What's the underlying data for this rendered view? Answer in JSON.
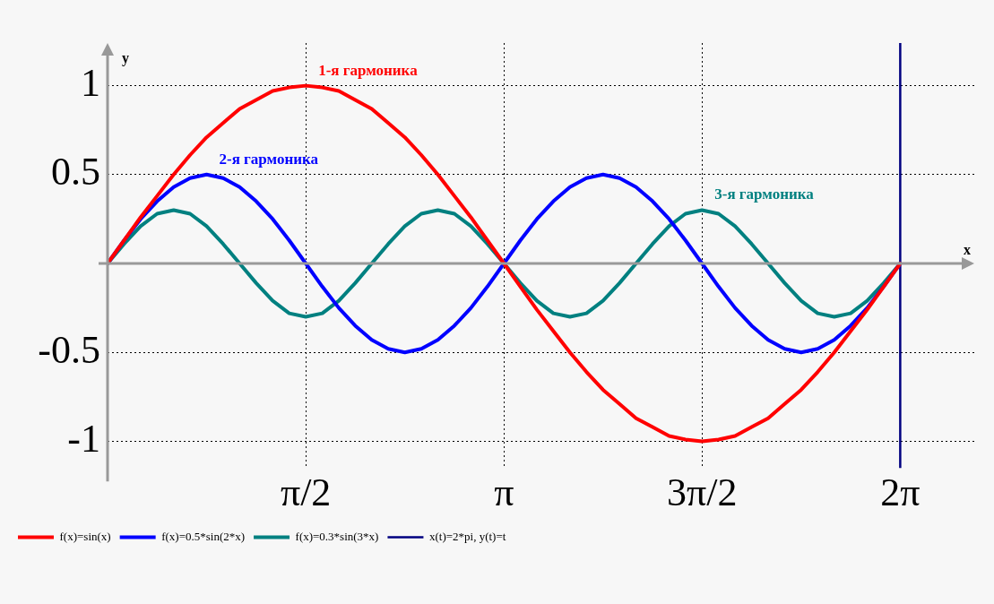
{
  "chart_data": {
    "type": "line",
    "xlabel": "x",
    "ylabel": "y",
    "x": [
      0,
      0.131,
      0.262,
      0.393,
      0.524,
      0.654,
      0.785,
      0.916,
      1.047,
      1.178,
      1.309,
      1.44,
      1.571,
      1.702,
      1.833,
      1.963,
      2.094,
      2.225,
      2.356,
      2.487,
      2.618,
      2.749,
      2.88,
      3.011,
      3.142,
      3.272,
      3.403,
      3.534,
      3.665,
      3.796,
      3.927,
      4.058,
      4.189,
      4.32,
      4.451,
      4.581,
      4.712,
      4.843,
      4.974,
      5.105,
      5.236,
      5.367,
      5.498,
      5.629,
      5.76,
      5.89,
      6.021,
      6.152,
      6.283
    ],
    "series": [
      {
        "name": "f(x)=sin(x)",
        "color": "#ff0000",
        "values": [
          0,
          0.13,
          0.26,
          0.38,
          0.5,
          0.61,
          0.71,
          0.79,
          0.87,
          0.92,
          0.97,
          0.99,
          1,
          0.99,
          0.97,
          0.92,
          0.87,
          0.79,
          0.71,
          0.61,
          0.5,
          0.38,
          0.26,
          0.13,
          0,
          -0.13,
          -0.26,
          -0.38,
          -0.5,
          -0.61,
          -0.71,
          -0.79,
          -0.87,
          -0.92,
          -0.97,
          -0.99,
          -1,
          -0.99,
          -0.97,
          -0.92,
          -0.87,
          -0.79,
          -0.71,
          -0.61,
          -0.5,
          -0.38,
          -0.26,
          -0.13,
          0
        ]
      },
      {
        "name": "f(x)=0.5*sin(2*x)",
        "color": "#0000ff",
        "values": [
          0,
          0.13,
          0.25,
          0.35,
          0.43,
          0.48,
          0.5,
          0.48,
          0.43,
          0.35,
          0.25,
          0.13,
          0,
          -0.13,
          -0.25,
          -0.35,
          -0.43,
          -0.48,
          -0.5,
          -0.48,
          -0.43,
          -0.35,
          -0.25,
          -0.13,
          0,
          0.13,
          0.25,
          0.35,
          0.43,
          0.48,
          0.5,
          0.48,
          0.43,
          0.35,
          0.25,
          0.13,
          0,
          -0.13,
          -0.25,
          -0.35,
          -0.43,
          -0.48,
          -0.5,
          -0.48,
          -0.43,
          -0.35,
          -0.25,
          -0.13,
          0
        ]
      },
      {
        "name": "f(x)=0.3*sin(3*x)",
        "color": "#008080",
        "values": [
          0,
          0.11,
          0.21,
          0.28,
          0.3,
          0.28,
          0.21,
          0.11,
          0,
          -0.11,
          -0.21,
          -0.28,
          -0.3,
          -0.28,
          -0.21,
          -0.11,
          0,
          0.11,
          0.21,
          0.28,
          0.3,
          0.28,
          0.21,
          0.11,
          0,
          -0.11,
          -0.21,
          -0.28,
          -0.3,
          -0.28,
          -0.21,
          -0.11,
          0,
          0.11,
          0.21,
          0.28,
          0.3,
          0.28,
          0.21,
          0.11,
          0,
          -0.11,
          -0.21,
          -0.28,
          -0.3,
          -0.28,
          -0.21,
          -0.11,
          0
        ]
      },
      {
        "name": "x(t)=2*pi, y(t)=t",
        "color": "#000080",
        "x": [
          6.283,
          6.283
        ],
        "values": [
          -1.15,
          1.24
        ]
      }
    ],
    "annotations": [
      {
        "text": "1-я гармоника",
        "x": 1.571,
        "y": 1
      },
      {
        "text": "2-я гармоника",
        "x": 0.785,
        "y": 0.5
      },
      {
        "text": "3-я гармоника",
        "x": 4.712,
        "y": 0.3
      }
    ],
    "xlim": [
      0,
      6.87
    ],
    "ylim": [
      -1.15,
      1.24
    ],
    "xticks": [
      {
        "value": 1.571,
        "label": "π/2"
      },
      {
        "value": 3.142,
        "label": "π"
      },
      {
        "value": 4.712,
        "label": "3π/2"
      },
      {
        "value": 6.283,
        "label": "2π"
      }
    ],
    "yticks": [
      -1,
      -0.5,
      0.5,
      1
    ],
    "grid": true,
    "legend": "bottom left",
    "marker": "none",
    "line_style": "solid"
  }
}
